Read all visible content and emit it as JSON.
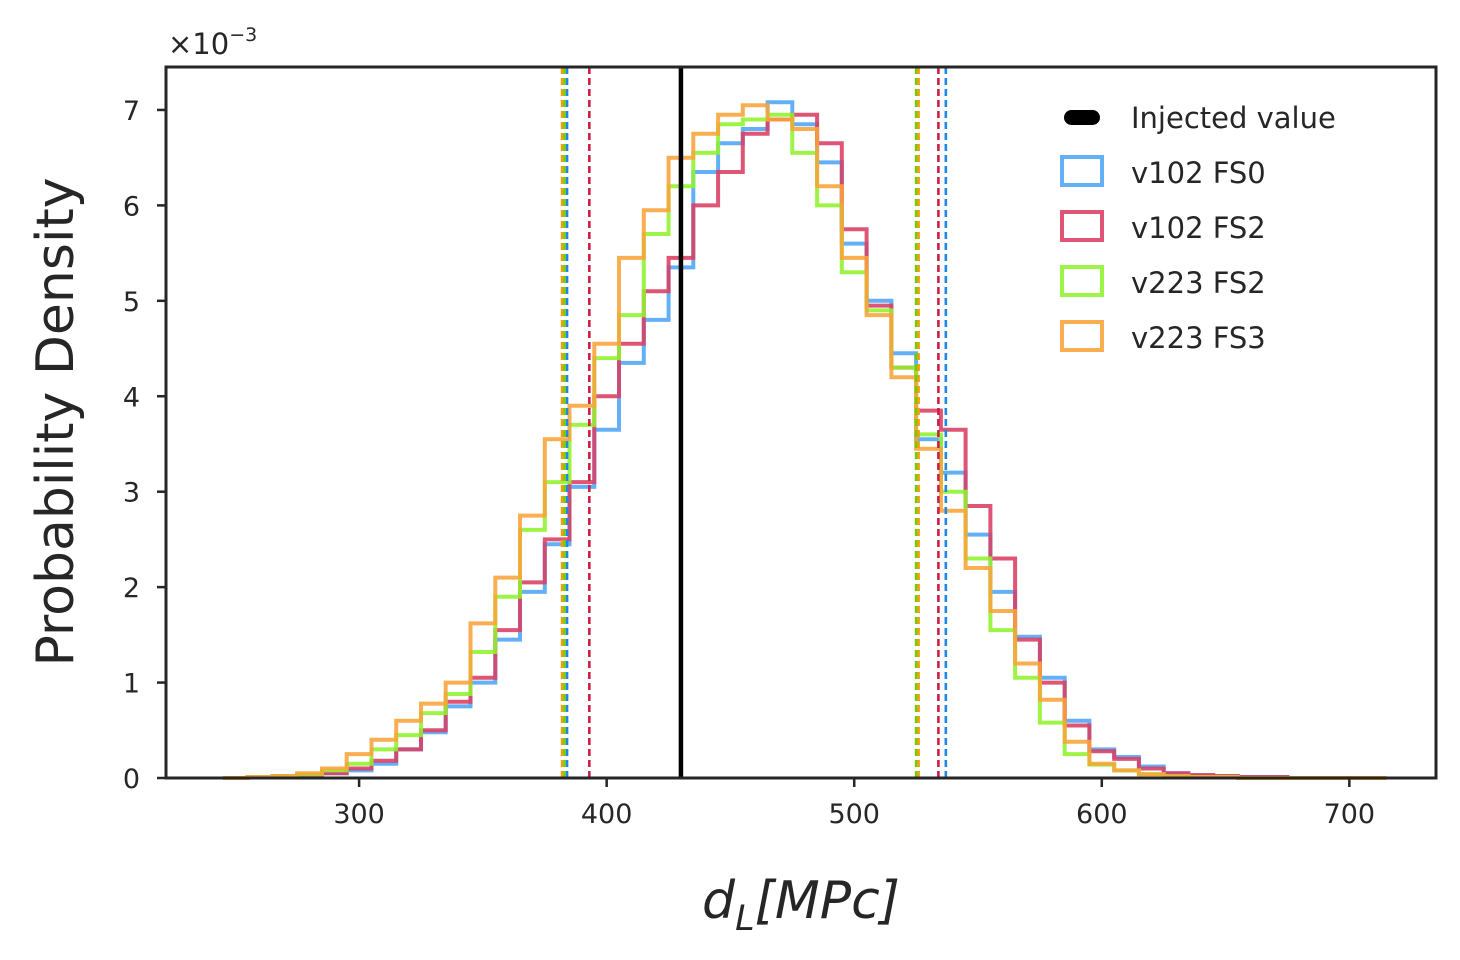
{
  "chart_data": {
    "type": "histogram",
    "title": "",
    "xlabel_base": "d",
    "xlabel_sub": "L",
    "xlabel_rest": "[MPc]",
    "ylabel": "Probability Density",
    "y_scale_label_base": "×10",
    "y_scale_label_exp": "−3",
    "xlim": [
      222,
      735
    ],
    "ylim": [
      0,
      7.45
    ],
    "xticks": [
      300,
      400,
      500,
      600,
      700
    ],
    "yticks": [
      0,
      1,
      2,
      3,
      4,
      5,
      6,
      7
    ],
    "bin_width": 10,
    "injected_value": 430,
    "series": [
      {
        "name": "v102 FS0",
        "color": "#4ea5f5",
        "bin_start": 245,
        "values": [
          0.0,
          0.01,
          0.02,
          0.03,
          0.05,
          0.08,
          0.15,
          0.3,
          0.48,
          0.75,
          1.0,
          1.45,
          1.95,
          2.45,
          3.05,
          3.65,
          4.35,
          4.8,
          5.35,
          6.35,
          6.65,
          6.8,
          7.08,
          6.85,
          6.45,
          5.6,
          5.0,
          4.45,
          3.55,
          3.2,
          2.55,
          1.95,
          1.48,
          1.05,
          0.6,
          0.3,
          0.22,
          0.12,
          0.05,
          0.03,
          0.02,
          0.01,
          0.01,
          0.0,
          0.0,
          0.0,
          0.0
        ]
      },
      {
        "name": "v102 FS2",
        "color": "#d93d63",
        "bin_start": 245,
        "values": [
          0.0,
          0.01,
          0.02,
          0.03,
          0.05,
          0.1,
          0.18,
          0.3,
          0.5,
          0.8,
          1.05,
          1.55,
          2.05,
          2.5,
          3.1,
          4.0,
          4.55,
          5.1,
          5.45,
          6.0,
          6.35,
          6.75,
          6.9,
          6.95,
          6.65,
          5.75,
          4.95,
          4.3,
          3.85,
          3.65,
          2.85,
          2.3,
          1.45,
          1.0,
          0.55,
          0.28,
          0.2,
          0.1,
          0.05,
          0.03,
          0.02,
          0.01,
          0.01,
          0.0,
          0.0,
          0.0,
          0.0
        ]
      },
      {
        "name": "v223 FS2",
        "color": "#8ff22d",
        "bin_start": 245,
        "values": [
          0.0,
          0.01,
          0.02,
          0.04,
          0.08,
          0.15,
          0.3,
          0.45,
          0.68,
          0.88,
          1.32,
          1.9,
          2.6,
          3.1,
          3.7,
          4.4,
          4.85,
          5.7,
          6.2,
          6.55,
          6.85,
          6.9,
          6.95,
          6.55,
          6.0,
          5.3,
          4.9,
          4.3,
          3.6,
          3.0,
          2.3,
          1.55,
          1.05,
          0.58,
          0.25,
          0.14,
          0.08,
          0.04,
          0.02,
          0.01,
          0.01,
          0.0,
          0.0,
          0.0,
          0.0,
          0.0,
          0.0
        ]
      },
      {
        "name": "v223 FS3",
        "color": "#f9a33a",
        "bin_start": 245,
        "values": [
          0.0,
          0.01,
          0.02,
          0.05,
          0.1,
          0.25,
          0.4,
          0.6,
          0.78,
          1.0,
          1.62,
          2.1,
          2.75,
          3.55,
          3.9,
          4.55,
          5.45,
          5.95,
          6.5,
          6.75,
          6.95,
          7.05,
          6.9,
          6.8,
          6.2,
          5.45,
          4.85,
          4.2,
          3.45,
          2.8,
          2.2,
          1.75,
          1.2,
          0.82,
          0.38,
          0.15,
          0.08,
          0.04,
          0.02,
          0.01,
          0.01,
          0.0,
          0.0,
          0.0,
          0.0,
          0.0,
          0.0
        ]
      }
    ],
    "credible_intervals": [
      {
        "name": "v102 FS0",
        "color": "#1e88e5",
        "lower": 384,
        "upper": 537
      },
      {
        "name": "v102 FS2",
        "color": "#cc1f44",
        "lower": 393,
        "upper": 534
      },
      {
        "name": "v223 FS2",
        "color": "#6fcc10",
        "lower": 383,
        "upper": 525
      },
      {
        "name": "v223 FS3",
        "color": "#f29f05",
        "lower": 382,
        "upper": 526
      }
    ],
    "legend": {
      "placement": "top-right",
      "injected_label": "Injected value",
      "injected_color": "#000000",
      "entries": [
        "v102 FS0",
        "v102 FS2",
        "v223 FS2",
        "v223 FS3"
      ]
    }
  }
}
